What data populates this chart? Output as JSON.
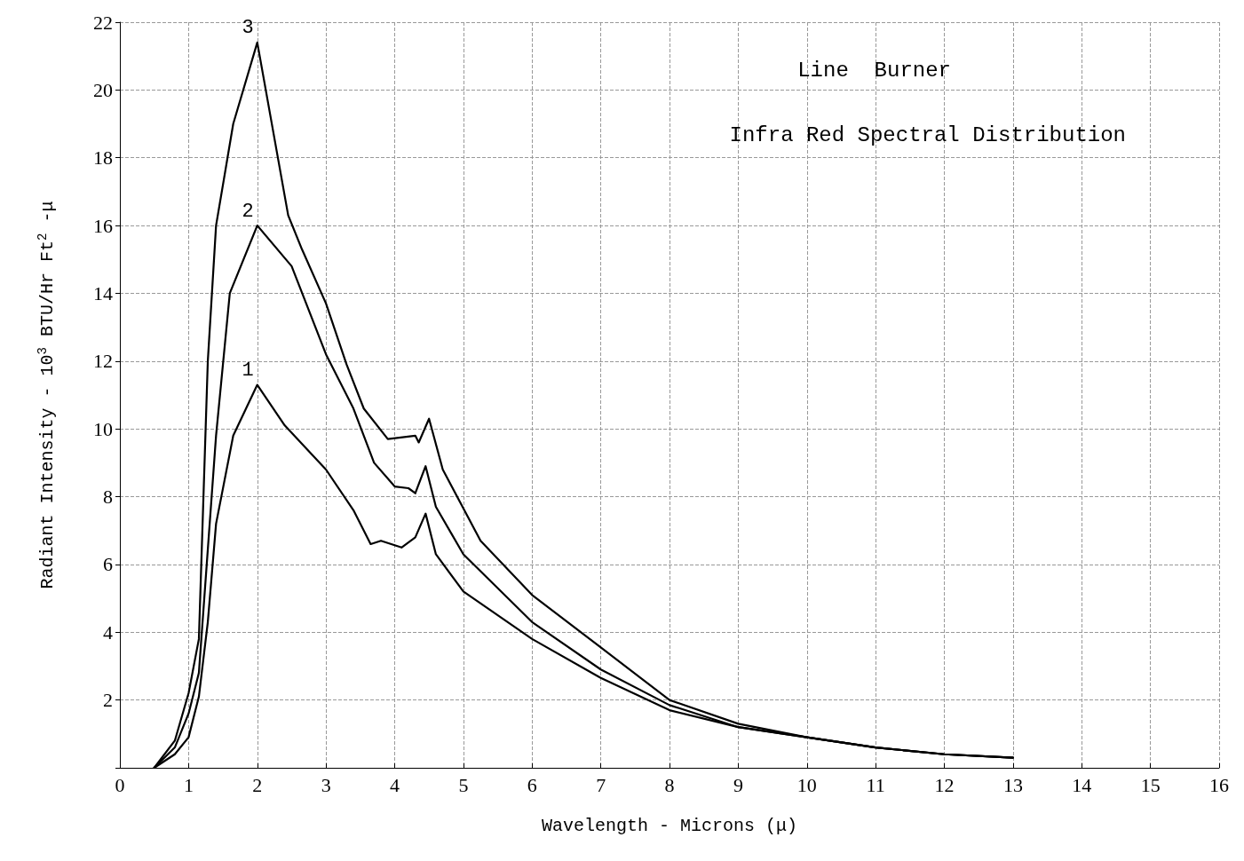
{
  "chart_data": {
    "type": "line",
    "title": "Line  Burner",
    "subtitle": "Infra Red Spectral Distribution",
    "xlabel": "Wavelength - Microns (μ)",
    "ylabel": "Radiant Intensity - 10$^{3}$ BTU/Hr Ft$^{2}$ -μ",
    "xlim": [
      0,
      16
    ],
    "xticks": [
      0,
      1,
      2,
      3,
      4,
      5,
      6,
      7,
      8,
      9,
      10,
      11,
      12,
      13,
      14,
      15,
      16
    ],
    "ylim": [
      0,
      22
    ],
    "yticks": [
      {
        "value": 0,
        "label": null
      },
      2,
      4,
      6,
      8,
      10,
      12,
      14,
      16,
      18,
      20,
      22
    ],
    "grid": true,
    "legend": false,
    "marker": "none",
    "line_style": "solid",
    "series": [
      {
        "name": "1",
        "color": "#000000",
        "x": [
          0.5,
          0.8,
          1.0,
          1.15,
          1.28,
          1.4,
          1.65,
          2.0,
          2.4,
          3.0,
          3.4,
          3.65,
          3.8,
          4.1,
          4.3,
          4.45,
          4.6,
          5.0,
          6.0,
          7.0,
          8.0,
          9.0,
          10.0,
          11.0,
          12.0,
          13.0
        ],
        "values": [
          0,
          0.4,
          0.9,
          2.1,
          4.3,
          7.2,
          9.8,
          11.3,
          10.1,
          8.8,
          7.6,
          6.6,
          6.7,
          6.5,
          6.8,
          7.5,
          6.3,
          5.2,
          3.8,
          2.65,
          1.7,
          1.2,
          0.9,
          0.6,
          0.4,
          0.3
        ]
      },
      {
        "name": "2",
        "color": "#000000",
        "x": [
          0.5,
          0.8,
          1.0,
          1.15,
          1.25,
          1.4,
          1.6,
          2.0,
          2.5,
          3.0,
          3.4,
          3.7,
          4.0,
          4.2,
          4.3,
          4.45,
          4.6,
          5.0,
          6.0,
          7.0,
          8.0,
          9.0,
          10.0,
          11.0,
          12.0,
          13.0
        ],
        "values": [
          0,
          0.6,
          1.6,
          2.8,
          5.6,
          9.8,
          14,
          16.0,
          14.8,
          12.2,
          10.6,
          9.0,
          8.3,
          8.25,
          8.1,
          8.9,
          7.7,
          6.3,
          4.3,
          2.9,
          1.85,
          1.2,
          0.9,
          0.6,
          0.4,
          0.3
        ]
      },
      {
        "name": "3",
        "color": "#000000",
        "x": [
          0.5,
          0.8,
          1.0,
          1.15,
          1.28,
          1.4,
          1.65,
          2.0,
          2.45,
          2.65,
          3.0,
          3.3,
          3.55,
          3.9,
          4.3,
          4.35,
          4.5,
          4.7,
          5.25,
          6.0,
          7.0,
          8.0,
          9.0,
          10.0,
          11.0,
          12.0,
          13.0
        ],
        "values": [
          0,
          0.8,
          2.2,
          3.8,
          12,
          16,
          19,
          21.4,
          16.3,
          15.3,
          13.7,
          11.9,
          10.6,
          9.7,
          9.8,
          9.6,
          10.3,
          8.8,
          6.7,
          5.1,
          3.55,
          2.0,
          1.3,
          0.9,
          0.6,
          0.4,
          0.3
        ]
      }
    ]
  }
}
